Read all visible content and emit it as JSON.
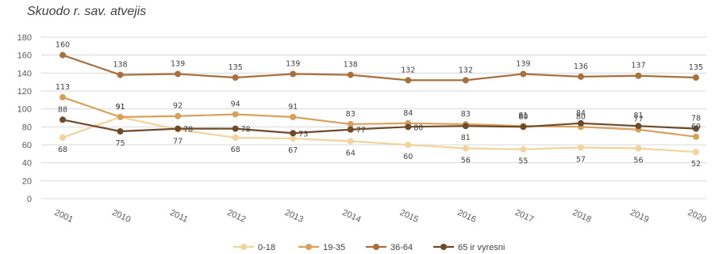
{
  "chart_data": {
    "type": "line",
    "title": "Skuodo r. sav. atvejis",
    "xlabel": "",
    "ylabel": "",
    "categories": [
      "2001",
      "2010",
      "2011",
      "2012",
      "2013",
      "2014",
      "2015",
      "2016",
      "2017",
      "2018",
      "2019",
      "2020"
    ],
    "ylim": [
      0,
      180
    ],
    "yticks": [
      0,
      20,
      40,
      60,
      80,
      100,
      120,
      140,
      160,
      180
    ],
    "grid": true,
    "legend_position": "bottom",
    "series": [
      {
        "name": "0-18",
        "color": "#f2d39a",
        "values": [
          68,
          91,
          77,
          68,
          67,
          64,
          60,
          56,
          55,
          57,
          56,
          52
        ],
        "label_pos": [
          "below",
          "above",
          "below",
          "below",
          "below",
          "below",
          "below",
          "below",
          "below",
          "below",
          "below",
          "below"
        ]
      },
      {
        "name": "19-35",
        "color": "#d9a05b",
        "values": [
          113,
          91,
          92,
          94,
          91,
          83,
          84,
          83,
          81,
          80,
          77,
          69
        ],
        "label_pos": [
          "above",
          "above",
          "above",
          "above",
          "above",
          "above",
          "above",
          "above",
          "above",
          "above",
          "above",
          "above"
        ]
      },
      {
        "name": "36-64",
        "color": "#a8703c",
        "values": [
          160,
          138,
          139,
          135,
          139,
          138,
          132,
          132,
          139,
          136,
          137,
          135
        ],
        "label_pos": [
          "above",
          "above",
          "above",
          "above",
          "above",
          "above",
          "above",
          "above",
          "above",
          "above",
          "above",
          "above"
        ]
      },
      {
        "name": "65 ir vyresni",
        "color": "#6e4a2a",
        "values": [
          88,
          75,
          78,
          78,
          73,
          77,
          80,
          81,
          80,
          84,
          81,
          78
        ],
        "label_pos": [
          "above",
          "below",
          "right",
          "right",
          "right",
          "right",
          "right",
          "below",
          "above",
          "above",
          "above",
          "above"
        ]
      }
    ]
  }
}
